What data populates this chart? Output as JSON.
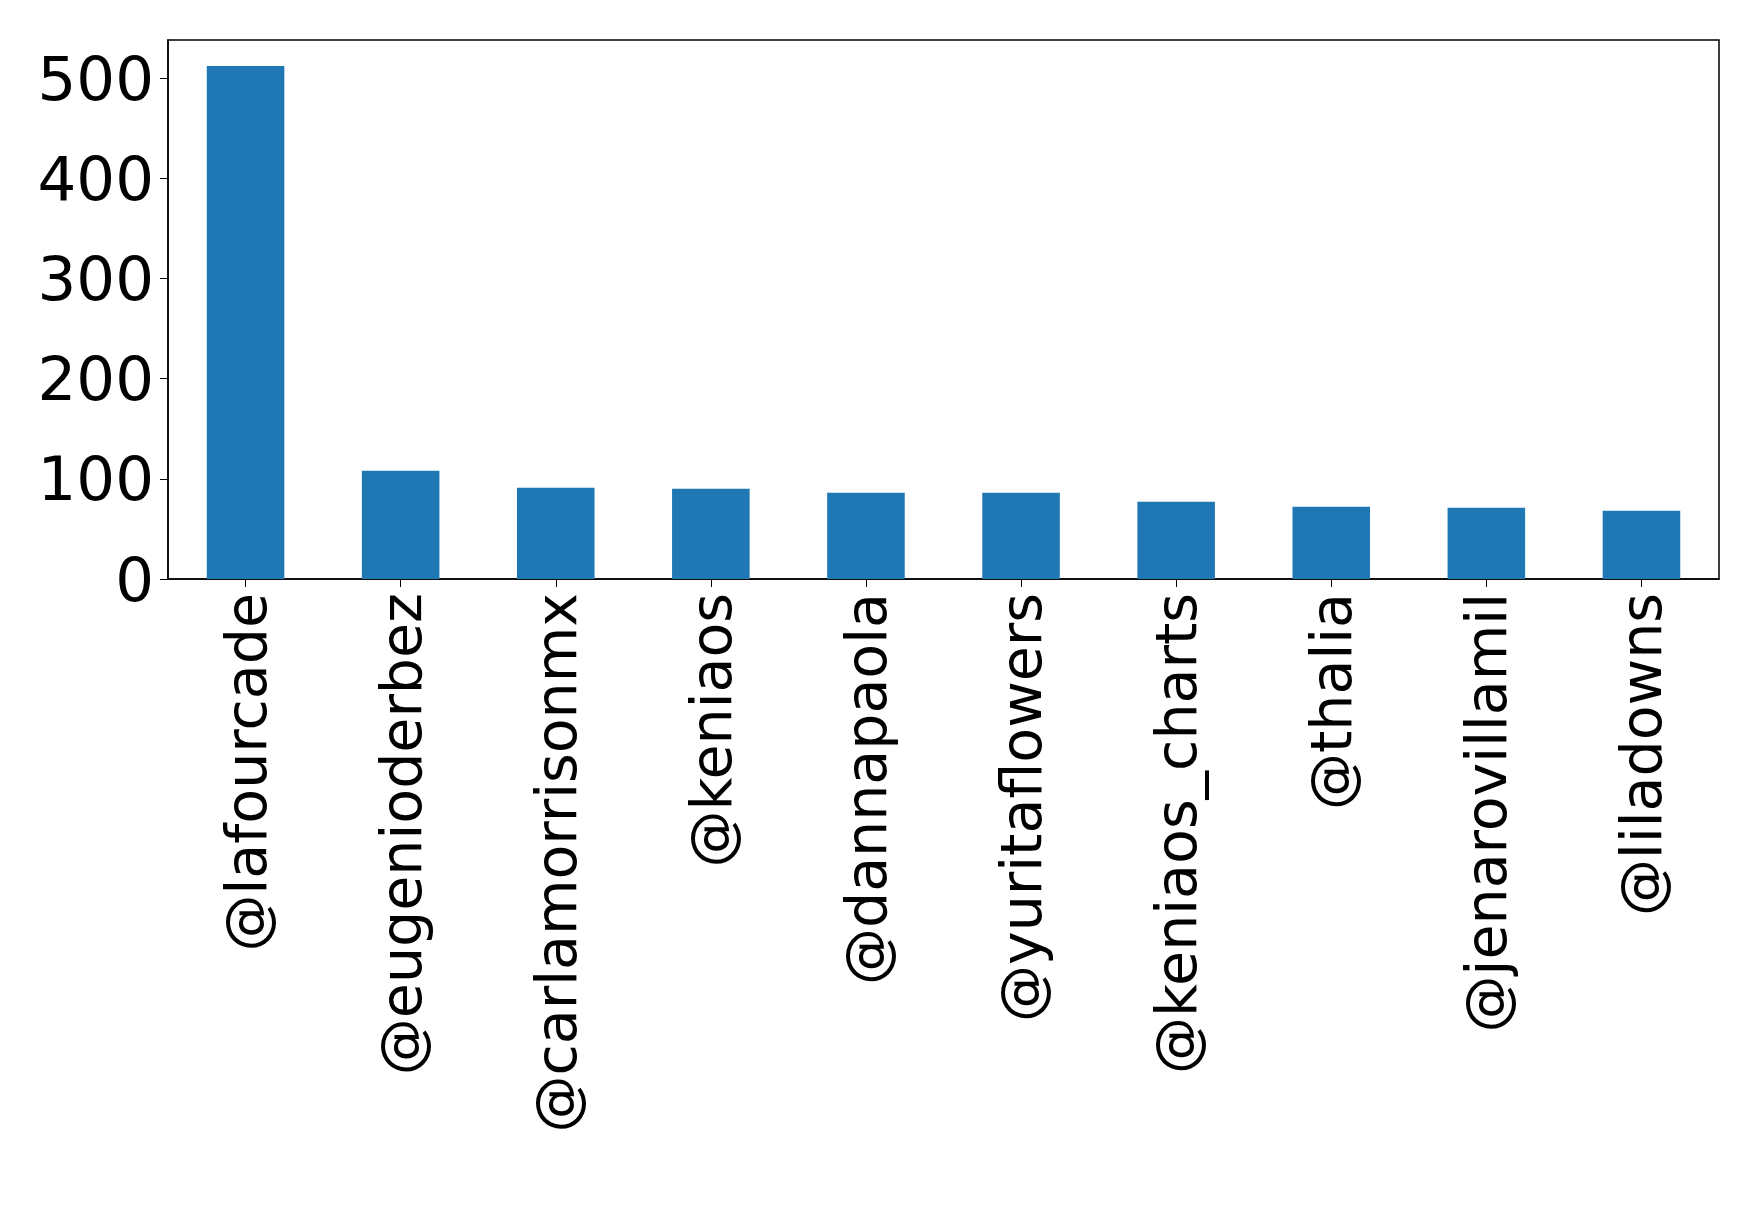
{
  "chart_data": {
    "type": "bar",
    "categories": [
      "@lafourcade",
      "@eugenioderbez",
      "@carlamorrisonmx",
      "@keniaos",
      "@dannapaola",
      "@yuritaflowers",
      "@keniaos_charts",
      "@thalia",
      "@jenarovillamil",
      "@liladowns"
    ],
    "values": [
      512,
      108,
      91,
      90,
      86,
      86,
      77,
      72,
      71,
      68
    ],
    "color": "#1f77b4",
    "ylim": [
      0,
      538
    ],
    "yticks": [
      0,
      100,
      200,
      300,
      400,
      500
    ],
    "grid": false
  }
}
